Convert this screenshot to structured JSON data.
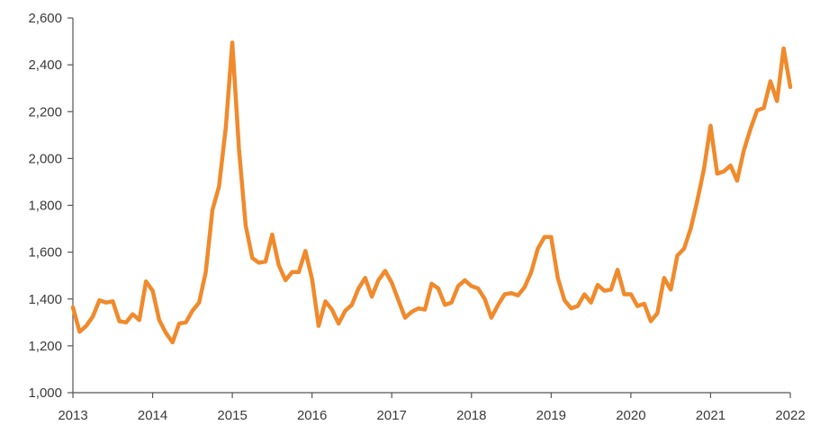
{
  "chart_data": {
    "type": "line",
    "title": "",
    "xlabel": "",
    "ylabel": "",
    "ylim": [
      1000,
      2600
    ],
    "xlim": [
      2013,
      2022
    ],
    "grid": false,
    "y_ticks": [
      1000,
      1200,
      1400,
      1600,
      1800,
      2000,
      2200,
      2400,
      2600
    ],
    "y_tick_labels": [
      "1,000",
      "1,200",
      "1,400",
      "1,600",
      "1,800",
      "2,000",
      "2,200",
      "2,400",
      "2,600"
    ],
    "x_ticks": [
      2013,
      2014,
      2015,
      2016,
      2017,
      2018,
      2019,
      2020,
      2021,
      2022
    ],
    "x_tick_labels": [
      "2013",
      "2014",
      "2015",
      "2016",
      "2017",
      "2018",
      "2019",
      "2020",
      "2021",
      "2022"
    ],
    "series": [
      {
        "color": "#F08A2C",
        "x": [
          2013.0,
          2013.083,
          2013.167,
          2013.25,
          2013.333,
          2013.417,
          2013.5,
          2013.583,
          2013.667,
          2013.75,
          2013.833,
          2013.917,
          2014.0,
          2014.083,
          2014.167,
          2014.25,
          2014.333,
          2014.417,
          2014.5,
          2014.583,
          2014.667,
          2014.75,
          2014.833,
          2014.917,
          2015.0,
          2015.083,
          2015.167,
          2015.25,
          2015.333,
          2015.417,
          2015.5,
          2015.583,
          2015.667,
          2015.75,
          2015.833,
          2015.917,
          2016.0,
          2016.083,
          2016.167,
          2016.25,
          2016.333,
          2016.417,
          2016.5,
          2016.583,
          2016.667,
          2016.75,
          2016.833,
          2016.917,
          2017.0,
          2017.083,
          2017.167,
          2017.25,
          2017.333,
          2017.417,
          2017.5,
          2017.583,
          2017.667,
          2017.75,
          2017.833,
          2017.917,
          2018.0,
          2018.083,
          2018.167,
          2018.25,
          2018.333,
          2018.417,
          2018.5,
          2018.583,
          2018.667,
          2018.75,
          2018.833,
          2018.917,
          2019.0,
          2019.083,
          2019.167,
          2019.25,
          2019.333,
          2019.417,
          2019.5,
          2019.583,
          2019.667,
          2019.75,
          2019.833,
          2019.917,
          2020.0,
          2020.083,
          2020.167,
          2020.25,
          2020.333,
          2020.417,
          2020.5,
          2020.583,
          2020.667,
          2020.75,
          2020.833,
          2020.917,
          2021.0,
          2021.083,
          2021.167,
          2021.25,
          2021.333,
          2021.417,
          2021.5,
          2021.583,
          2021.667,
          2021.75,
          2021.833,
          2021.917,
          2022.0
        ],
        "values": [
          1365,
          1260,
          1285,
          1325,
          1395,
          1385,
          1390,
          1305,
          1300,
          1335,
          1310,
          1475,
          1435,
          1310,
          1255,
          1215,
          1295,
          1300,
          1350,
          1385,
          1515,
          1780,
          1880,
          2130,
          2495,
          2040,
          1715,
          1575,
          1555,
          1560,
          1675,
          1545,
          1480,
          1515,
          1515,
          1605,
          1485,
          1285,
          1390,
          1355,
          1295,
          1350,
          1375,
          1445,
          1490,
          1410,
          1480,
          1520,
          1470,
          1395,
          1320,
          1345,
          1360,
          1355,
          1465,
          1445,
          1375,
          1385,
          1455,
          1480,
          1455,
          1445,
          1400,
          1320,
          1375,
          1420,
          1425,
          1415,
          1450,
          1515,
          1615,
          1665,
          1665,
          1490,
          1395,
          1360,
          1370,
          1420,
          1385,
          1460,
          1435,
          1440,
          1525,
          1420,
          1420,
          1370,
          1380,
          1305,
          1340,
          1490,
          1440,
          1585,
          1615,
          1700,
          1820,
          1955,
          2140,
          1935,
          1945,
          1970,
          1905,
          2035,
          2125,
          2205,
          2215,
          2330,
          2245,
          2470,
          2305
        ]
      }
    ]
  }
}
